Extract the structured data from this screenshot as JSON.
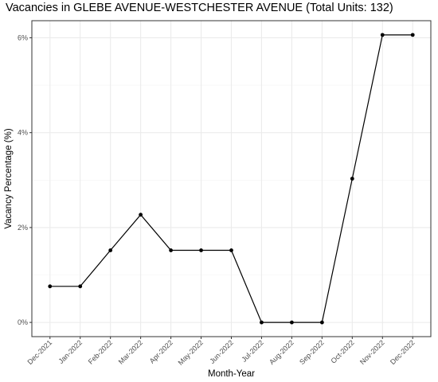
{
  "chart_data": {
    "type": "line",
    "title": "Vacancies in GLEBE AVENUE-WESTCHESTER AVENUE (Total Units: 132)",
    "xlabel": "Month-Year",
    "ylabel": "Vacancy Percentage (%)",
    "categories": [
      "Dec-2021",
      "Jan-2022",
      "Feb-2022",
      "Mar-2022",
      "Apr-2022",
      "May-2022",
      "Jun-2022",
      "Jul-2022",
      "Aug-2022",
      "Sep-2022",
      "Oct-2022",
      "Nov-2022",
      "Dec-2022"
    ],
    "values": [
      0.76,
      0.76,
      1.52,
      2.27,
      1.52,
      1.52,
      1.52,
      0.0,
      0.0,
      0.0,
      3.03,
      6.06,
      6.06
    ],
    "ylim": [
      -0.3,
      6.36
    ],
    "yticks": [
      0,
      2,
      4,
      6
    ],
    "ytick_labels": [
      "0%",
      "2%",
      "4%",
      "6%"
    ],
    "grid": true,
    "colors": {
      "line": "#000000",
      "points": "#000000",
      "grid_major": "#ebebeb",
      "grid_minor": "#f4f4f4",
      "panel_border": "#333333",
      "tick_text": "#4d4d4d"
    }
  }
}
